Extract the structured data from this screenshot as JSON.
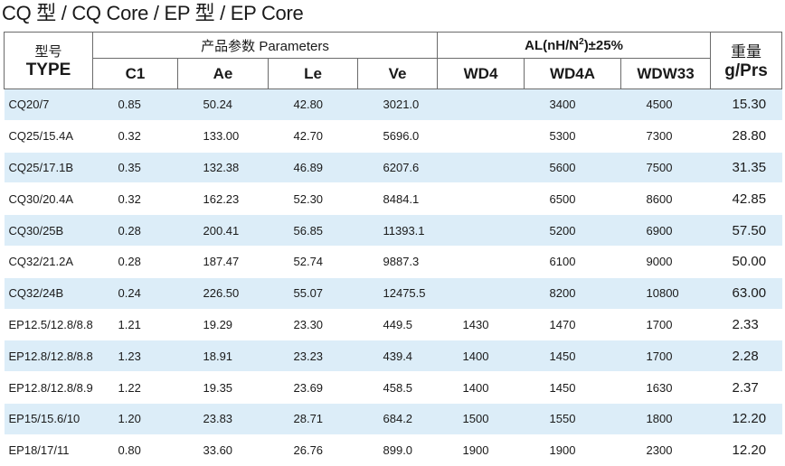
{
  "title": {
    "text": "CQ 型  / CQ Core / EP 型  / EP Core"
  },
  "table": {
    "header": {
      "type_cn": "型号",
      "type_en": "TYPE",
      "params_group": "产品参数  Parameters",
      "al_group_prefix": "AL(nH/N",
      "al_group_sup": "2",
      "al_group_suffix": ")±25%",
      "weight_cn": "重量",
      "weight_en": "g/Prs",
      "c1": "C1",
      "ae": "Ae",
      "le": "Le",
      "ve": "Ve",
      "wd4": "WD4",
      "wd4a": "WD4A",
      "wdw33": "WDW33"
    },
    "rows": [
      {
        "type": "CQ20/7",
        "c1": "0.85",
        "ae": "50.24",
        "le": "42.80",
        "ve": "3021.0",
        "wd4": "",
        "wd4a": "3400",
        "wdw33": "4500",
        "weight": "15.30"
      },
      {
        "type": "CQ25/15.4A",
        "c1": "0.32",
        "ae": "133.00",
        "le": "42.70",
        "ve": "5696.0",
        "wd4": "",
        "wd4a": "5300",
        "wdw33": "7300",
        "weight": "28.80"
      },
      {
        "type": "CQ25/17.1B",
        "c1": "0.35",
        "ae": "132.38",
        "le": "46.89",
        "ve": "6207.6",
        "wd4": "",
        "wd4a": "5600",
        "wdw33": "7500",
        "weight": "31.35"
      },
      {
        "type": "CQ30/20.4A",
        "c1": "0.32",
        "ae": "162.23",
        "le": "52.30",
        "ve": "8484.1",
        "wd4": "",
        "wd4a": "6500",
        "wdw33": "8600",
        "weight": "42.85"
      },
      {
        "type": "CQ30/25B",
        "c1": "0.28",
        "ae": "200.41",
        "le": "56.85",
        "ve": "11393.1",
        "wd4": "",
        "wd4a": "5200",
        "wdw33": "6900",
        "weight": "57.50"
      },
      {
        "type": "CQ32/21.2A",
        "c1": "0.28",
        "ae": "187.47",
        "le": "52.74",
        "ve": "9887.3",
        "wd4": "",
        "wd4a": "6100",
        "wdw33": "9000",
        "weight": "50.00"
      },
      {
        "type": "CQ32/24B",
        "c1": "0.24",
        "ae": "226.50",
        "le": "55.07",
        "ve": "12475.5",
        "wd4": "",
        "wd4a": "8200",
        "wdw33": "10800",
        "weight": "63.00"
      },
      {
        "type": "EP12.5/12.8/8.8",
        "c1": "1.21",
        "ae": "19.29",
        "le": "23.30",
        "ve": "449.5",
        "wd4": "1430",
        "wd4a": "1470",
        "wdw33": "1700",
        "weight": "2.33"
      },
      {
        "type": "EP12.8/12.8/8.8",
        "c1": "1.23",
        "ae": "18.91",
        "le": "23.23",
        "ve": "439.4",
        "wd4": "1400",
        "wd4a": "1450",
        "wdw33": "1700",
        "weight": "2.28"
      },
      {
        "type": "EP12.8/12.8/8.9",
        "c1": "1.22",
        "ae": "19.35",
        "le": "23.69",
        "ve": "458.5",
        "wd4": "1400",
        "wd4a": "1450",
        "wdw33": "1630",
        "weight": "2.37"
      },
      {
        "type": "EP15/15.6/10",
        "c1": "1.20",
        "ae": "23.83",
        "le": "28.71",
        "ve": "684.2",
        "wd4": "1500",
        "wd4a": "1550",
        "wdw33": "1800",
        "weight": "12.20"
      },
      {
        "type": "EP18/17/11",
        "c1": "0.80",
        "ae": "33.60",
        "le": "26.76",
        "ve": "899.0",
        "wd4": "1900",
        "wd4a": "1900",
        "wdw33": "2300",
        "weight": "12.20"
      }
    ]
  },
  "colors": {
    "row_shade": "#dcedf8",
    "border": "#6b6b6b"
  }
}
